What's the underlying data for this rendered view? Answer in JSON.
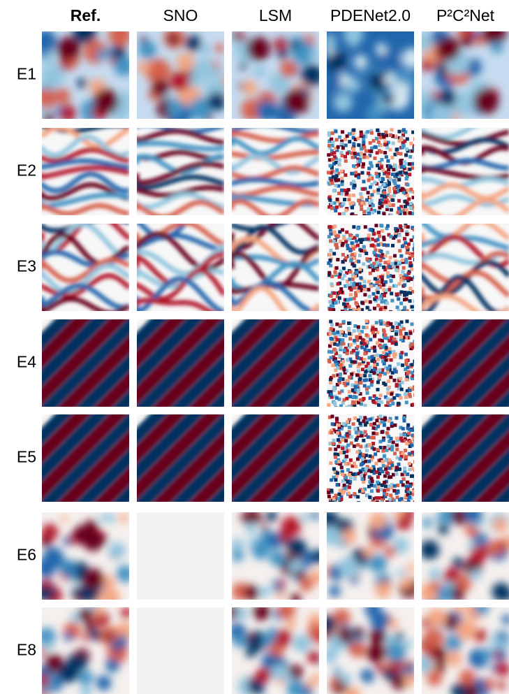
{
  "columns": [
    "Ref.",
    "SNO",
    "LSM",
    "PDENet2.0",
    "P²C²Net"
  ],
  "rows": [
    "E1",
    "E2",
    "E3",
    "E4",
    "E5",
    "E6",
    "E8"
  ]
}
